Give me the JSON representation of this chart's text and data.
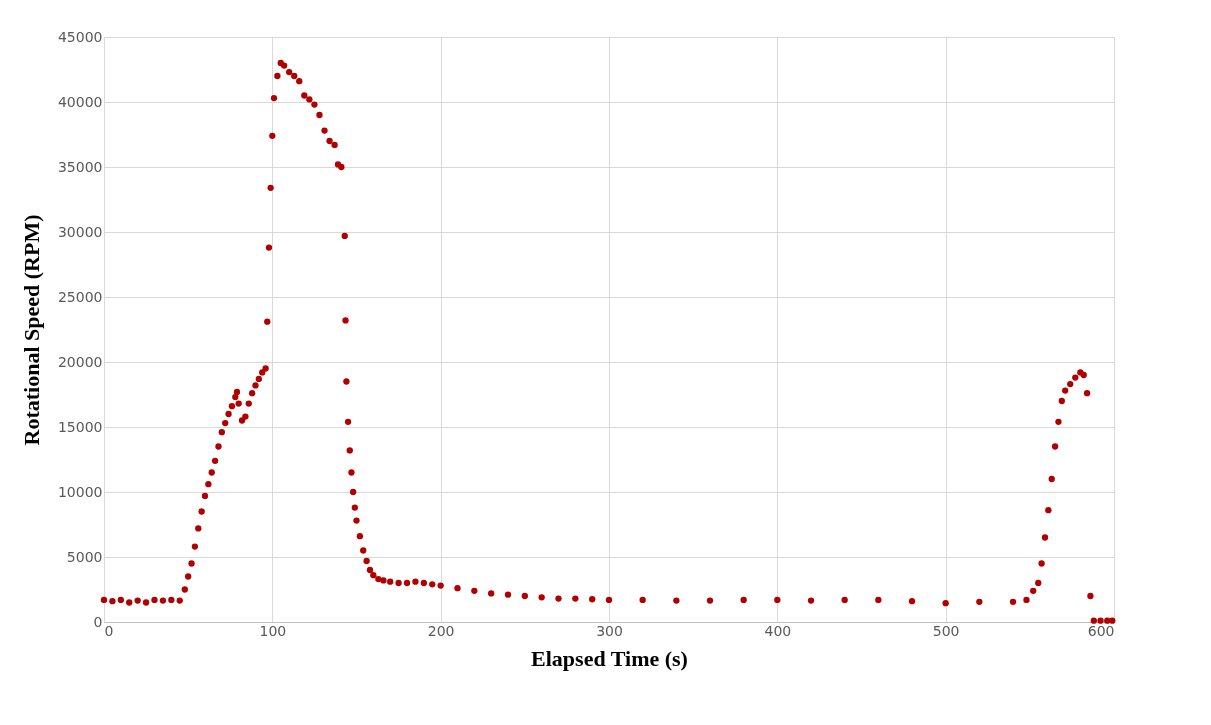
{
  "chart_data": {
    "type": "scatter",
    "xlabel": "Elapsed Time (s)",
    "ylabel": "Rotational Speed (RPM)",
    "xlim": [
      0,
      600
    ],
    "xticks": [
      0,
      100,
      200,
      300,
      400,
      500,
      600
    ],
    "ylim": [
      0,
      45000
    ],
    "yticks": [
      0,
      5000,
      10000,
      15000,
      20000,
      25000,
      30000,
      35000,
      40000,
      45000
    ],
    "grid": true,
    "marker": "circle",
    "series": [
      {
        "color": "#b00000",
        "x": [
          0,
          5,
          10,
          15,
          20,
          25,
          30,
          35,
          40,
          45,
          48,
          50,
          52,
          54,
          56,
          58,
          60,
          62,
          64,
          66,
          68,
          70,
          72,
          74,
          76,
          78,
          79,
          80,
          82,
          84,
          86,
          88,
          90,
          92,
          94,
          96,
          97,
          98,
          99,
          100,
          101,
          103,
          105,
          107,
          110,
          113,
          116,
          119,
          122,
          125,
          128,
          131,
          134,
          137,
          139,
          141,
          143,
          143.5,
          144,
          145,
          146,
          147,
          148,
          149,
          150,
          152,
          154,
          156,
          158,
          160,
          163,
          166,
          170,
          175,
          180,
          185,
          190,
          195,
          200,
          210,
          220,
          230,
          240,
          250,
          260,
          270,
          280,
          290,
          300,
          320,
          340,
          360,
          380,
          400,
          420,
          440,
          460,
          480,
          500,
          520,
          540,
          548,
          552,
          555,
          557,
          559,
          561,
          563,
          565,
          567,
          569,
          571,
          574,
          577,
          580,
          582,
          584,
          586,
          588,
          592,
          596,
          599
        ],
        "values": [
          1700,
          1600,
          1700,
          1500,
          1650,
          1500,
          1700,
          1650,
          1700,
          1650,
          2500,
          3500,
          4500,
          5800,
          7200,
          8500,
          9700,
          10600,
          11500,
          12400,
          13500,
          14600,
          15300,
          16000,
          16600,
          17300,
          17700,
          16800,
          15500,
          15800,
          16800,
          17600,
          18200,
          18700,
          19200,
          19500,
          23100,
          28800,
          33400,
          37400,
          40300,
          42000,
          43000,
          42800,
          42300,
          42000,
          41600,
          40500,
          40200,
          39800,
          39000,
          37800,
          37000,
          36700,
          35200,
          35000,
          29700,
          23200,
          18500,
          15400,
          13200,
          11500,
          10000,
          8800,
          7800,
          6600,
          5500,
          4700,
          4000,
          3600,
          3300,
          3200,
          3100,
          3000,
          3000,
          3100,
          3000,
          2900,
          2800,
          2600,
          2400,
          2200,
          2100,
          2000,
          1900,
          1800,
          1800,
          1750,
          1700,
          1700,
          1650,
          1650,
          1700,
          1700,
          1650,
          1700,
          1700,
          1600,
          1450,
          1550,
          1550,
          1700,
          2400,
          3000,
          4500,
          6500,
          8600,
          11000,
          13500,
          15400,
          17000,
          17800,
          18300,
          18800,
          19200,
          19000,
          17600,
          2000,
          100,
          100,
          100,
          100
        ]
      }
    ]
  }
}
